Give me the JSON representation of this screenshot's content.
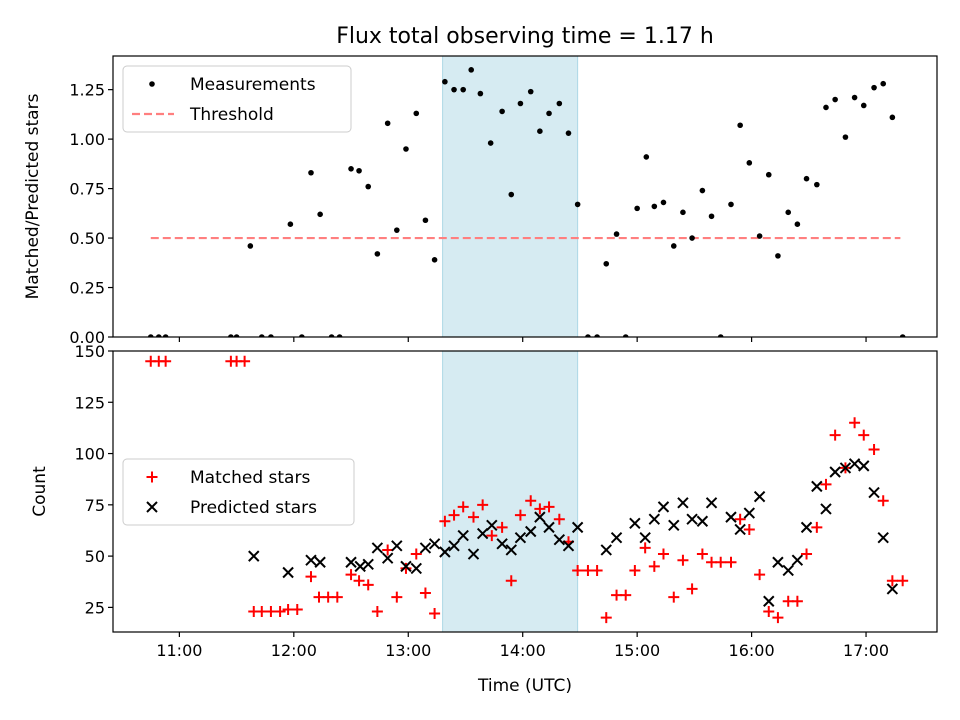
{
  "chart_data": [
    {
      "type": "scatter",
      "title": "Flux total observing time = 1.17 h",
      "xlabel": "",
      "ylabel": "Matched/Predicted stars",
      "x_unit": "hours UTC",
      "xlim": [
        10.42,
        17.62
      ],
      "ylim": [
        0,
        1.42
      ],
      "yticks": [
        0.0,
        0.25,
        0.5,
        0.75,
        1.0,
        1.25
      ],
      "ytick_labels": [
        "0.00",
        "0.25",
        "0.50",
        "0.75",
        "1.00",
        "1.25"
      ],
      "highlight_span": {
        "x0": 13.3,
        "x1": 14.48,
        "color": "#add8e6"
      },
      "threshold": {
        "label": "Threshold",
        "value": 0.5,
        "x0": 10.75,
        "x1": 17.3,
        "color": "#ff7f7f"
      },
      "series": [
        {
          "name": "Measurements",
          "color": "#000000",
          "marker": "dot",
          "x": [
            10.75,
            10.82,
            10.88,
            11.45,
            11.5,
            11.62,
            11.72,
            11.8,
            11.97,
            12.07,
            12.15,
            12.23,
            12.33,
            12.4,
            12.5,
            12.57,
            12.65,
            12.73,
            12.82,
            12.9,
            12.98,
            13.07,
            13.15,
            13.23,
            13.32,
            13.4,
            13.48,
            13.55,
            13.63,
            13.72,
            13.82,
            13.9,
            13.98,
            14.07,
            14.15,
            14.23,
            14.32,
            14.4,
            14.48,
            14.57,
            14.65,
            14.73,
            14.82,
            14.9,
            15.0,
            15.08,
            15.15,
            15.23,
            15.32,
            15.4,
            15.48,
            15.57,
            15.65,
            15.73,
            15.82,
            15.9,
            15.98,
            16.07,
            16.15,
            16.23,
            16.32,
            16.4,
            16.48,
            16.57,
            16.65,
            16.73,
            16.82,
            16.9,
            16.98,
            17.07,
            17.15,
            17.23,
            17.32
          ],
          "y": [
            0.0,
            0.0,
            0.0,
            0.0,
            0.0,
            0.46,
            0.0,
            0.0,
            0.57,
            0.0,
            0.83,
            0.62,
            0.0,
            0.0,
            0.85,
            0.84,
            0.76,
            0.42,
            1.08,
            0.54,
            0.95,
            1.13,
            0.59,
            0.39,
            1.29,
            1.25,
            1.25,
            1.35,
            1.23,
            0.98,
            1.14,
            0.72,
            1.18,
            1.24,
            1.04,
            1.13,
            1.18,
            1.03,
            0.67,
            0.0,
            0.0,
            0.37,
            0.52,
            0.0,
            0.65,
            0.91,
            0.66,
            0.68,
            0.46,
            0.63,
            0.5,
            0.74,
            0.61,
            0.0,
            0.67,
            1.07,
            0.88,
            0.51,
            0.82,
            0.41,
            0.63,
            0.57,
            0.8,
            0.77,
            1.16,
            1.2,
            1.01,
            1.21,
            1.17,
            1.26,
            1.28,
            1.11,
            0.0
          ]
        }
      ],
      "legend": {
        "position": "upper-left",
        "entries": [
          "Measurements",
          "Threshold"
        ]
      }
    },
    {
      "type": "scatter",
      "title": "",
      "xlabel": "Time (UTC)",
      "ylabel": "Count",
      "x_unit": "hours UTC",
      "xlim": [
        10.42,
        17.62
      ],
      "ylim": [
        13,
        150
      ],
      "xticks": [
        11,
        12,
        13,
        14,
        15,
        16,
        17
      ],
      "xtick_labels": [
        "11:00",
        "12:00",
        "13:00",
        "14:00",
        "15:00",
        "16:00",
        "17:00"
      ],
      "yticks": [
        25,
        50,
        75,
        100,
        125,
        150
      ],
      "ytick_labels": [
        "25",
        "50",
        "75",
        "100",
        "125",
        "150"
      ],
      "highlight_span": {
        "x0": 13.3,
        "x1": 14.48,
        "color": "#add8e6"
      },
      "series": [
        {
          "name": "Matched stars",
          "color": "#ff0000",
          "marker": "plus",
          "x": [
            10.75,
            10.82,
            10.88,
            11.45,
            11.5,
            11.57,
            11.65,
            11.72,
            11.8,
            11.88,
            11.95,
            12.03,
            12.15,
            12.22,
            12.3,
            12.38,
            12.5,
            12.57,
            12.65,
            12.73,
            12.82,
            12.9,
            12.98,
            13.07,
            13.15,
            13.23,
            13.32,
            13.4,
            13.48,
            13.57,
            13.65,
            13.73,
            13.82,
            13.9,
            13.98,
            14.07,
            14.15,
            14.23,
            14.32,
            14.4,
            14.48,
            14.57,
            14.65,
            14.73,
            14.82,
            14.9,
            14.98,
            15.07,
            15.15,
            15.23,
            15.32,
            15.4,
            15.48,
            15.57,
            15.65,
            15.73,
            15.82,
            15.9,
            15.98,
            16.07,
            16.15,
            16.23,
            16.32,
            16.4,
            16.48,
            16.57,
            16.65,
            16.73,
            16.82,
            16.9,
            16.98,
            17.07,
            17.15,
            17.23,
            17.32
          ],
          "y": [
            145,
            145,
            145,
            145,
            145,
            145,
            23,
            23,
            23,
            23,
            24,
            24,
            40,
            30,
            30,
            30,
            41,
            38,
            36,
            23,
            53,
            30,
            44,
            51,
            32,
            22,
            67,
            70,
            74,
            69,
            75,
            60,
            64,
            38,
            70,
            77,
            73,
            74,
            68,
            57,
            43,
            43,
            43,
            20,
            31,
            31,
            43,
            54,
            45,
            51,
            30,
            48,
            34,
            51,
            47,
            47,
            47,
            68,
            63,
            41,
            23,
            20,
            28,
            28,
            51,
            64,
            85,
            109,
            93,
            115,
            109,
            102,
            77,
            38,
            38
          ]
        },
        {
          "name": "Predicted stars",
          "color": "#000000",
          "marker": "x",
          "x": [
            11.65,
            11.95,
            12.15,
            12.23,
            12.5,
            12.58,
            12.65,
            12.73,
            12.82,
            12.9,
            12.98,
            13.07,
            13.15,
            13.23,
            13.32,
            13.4,
            13.48,
            13.57,
            13.65,
            13.73,
            13.82,
            13.9,
            13.98,
            14.07,
            14.15,
            14.23,
            14.32,
            14.4,
            14.48,
            14.73,
            14.82,
            14.98,
            15.07,
            15.15,
            15.23,
            15.32,
            15.4,
            15.48,
            15.57,
            15.65,
            15.82,
            15.9,
            15.98,
            16.07,
            16.15,
            16.23,
            16.32,
            16.4,
            16.48,
            16.57,
            16.65,
            16.73,
            16.82,
            16.9,
            16.98,
            17.07,
            17.15,
            17.23
          ],
          "y": [
            50,
            42,
            48,
            47,
            47,
            45,
            46,
            54,
            49,
            55,
            45,
            44,
            54,
            56,
            52,
            55,
            60,
            51,
            61,
            65,
            56,
            53,
            59,
            62,
            69,
            64,
            58,
            55,
            64,
            53,
            59,
            66,
            59,
            68,
            74,
            65,
            76,
            68,
            67,
            76,
            69,
            63,
            71,
            79,
            28,
            47,
            43,
            48,
            64,
            84,
            73,
            91,
            93,
            95,
            94,
            81,
            59,
            34
          ]
        }
      ],
      "legend": {
        "position": "center-left",
        "entries": [
          "Matched stars",
          "Predicted stars"
        ]
      }
    }
  ]
}
